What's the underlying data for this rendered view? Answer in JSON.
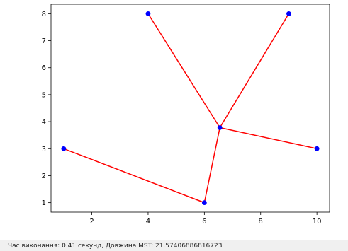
{
  "chart_data": {
    "type": "line",
    "title": "",
    "xlabel": "",
    "ylabel": "",
    "xlim": [
      0.55,
      10.45
    ],
    "ylim": [
      0.65,
      8.35
    ],
    "x_ticks": [
      2,
      4,
      6,
      8,
      10
    ],
    "y_ticks": [
      1,
      2,
      3,
      4,
      5,
      6,
      7,
      8
    ],
    "grid": false,
    "points": [
      {
        "x": 1,
        "y": 3
      },
      {
        "x": 4,
        "y": 8
      },
      {
        "x": 6,
        "y": 1
      },
      {
        "x": 6.55,
        "y": 3.78
      },
      {
        "x": 9,
        "y": 8
      },
      {
        "x": 10,
        "y": 3
      }
    ],
    "edges": [
      [
        0,
        2
      ],
      [
        2,
        3
      ],
      [
        1,
        3
      ],
      [
        4,
        3
      ],
      [
        3,
        5
      ]
    ],
    "colors": {
      "points": "#0000ff",
      "edges": "#ff0000"
    }
  },
  "status": {
    "text": "Час виконання: 0.41 секунд, Довжина MST: 21.57406886816723"
  }
}
